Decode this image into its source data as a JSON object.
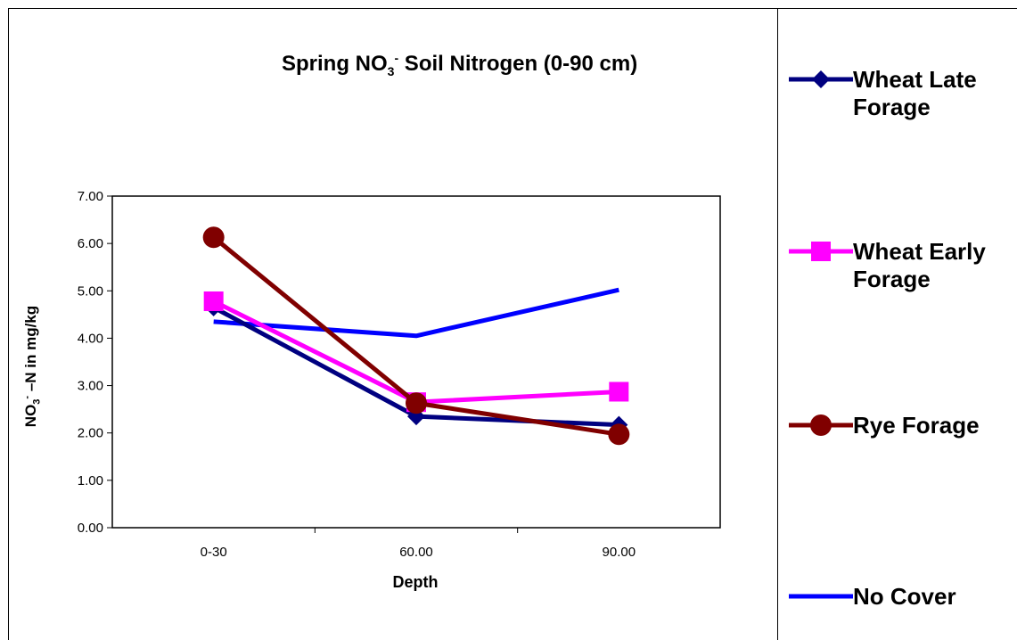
{
  "chart_data": {
    "type": "line",
    "title_main": "Spring NO",
    "title_sub": "3",
    "title_sup": "-",
    "title_rest": " Soil Nitrogen (0-90 cm)",
    "ylabel_main": "NO",
    "ylabel_sub": "3",
    "ylabel_sup": "-",
    "ylabel_rest": " –N in mg/kg",
    "xlabel": "Depth",
    "categories": [
      "0-30",
      "60.00",
      "90.00"
    ],
    "ylim": [
      0,
      7
    ],
    "yticks": [
      "0.00",
      "1.00",
      "2.00",
      "3.00",
      "4.00",
      "5.00",
      "6.00",
      "7.00"
    ],
    "legend_position": "right",
    "series": [
      {
        "name": "Wheat Late Forage",
        "legend_lines": [
          "Wheat Late",
          "Forage"
        ],
        "values": [
          4.65,
          2.35,
          2.17
        ],
        "color": "#000080",
        "marker": "diamond"
      },
      {
        "name": "Wheat Early Forage",
        "legend_lines": [
          "Wheat Early",
          "Forage"
        ],
        "values": [
          4.78,
          2.65,
          2.87
        ],
        "color": "#FF00FF",
        "marker": "square"
      },
      {
        "name": "Rye Forage",
        "legend_lines": [
          "Rye Forage"
        ],
        "values": [
          6.13,
          2.63,
          1.97
        ],
        "color": "#800000",
        "marker": "circle"
      },
      {
        "name": "No Cover",
        "legend_lines": [
          "No Cover"
        ],
        "values": [
          4.35,
          4.05,
          5.02
        ],
        "color": "#0000FF",
        "marker": "none"
      }
    ]
  }
}
